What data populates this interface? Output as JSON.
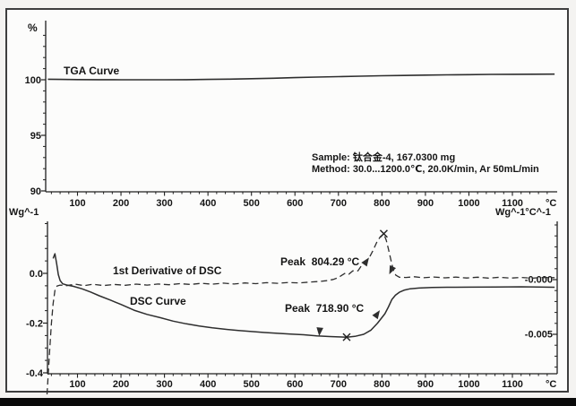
{
  "colors": {
    "page_bg": "#f4f3f1",
    "panel_bg": "#fcfcfb",
    "frame_border": "#3e3e3e",
    "axis": "#1f1f1f",
    "curve": "#2e2e2e",
    "text": "#151515",
    "bottom_bar": "#0a0a0a"
  },
  "chart_data": [
    {
      "type": "line",
      "panel": "TGA",
      "xlabel": "°C",
      "ylabel": "%",
      "xlim": [
        27,
        1204
      ],
      "ylim": [
        90,
        105.3
      ],
      "x_ticks": [
        100,
        200,
        300,
        400,
        500,
        600,
        700,
        800,
        900,
        1000,
        1100
      ],
      "x_minor_step": 20,
      "y_ticks": [
        100,
        95,
        90
      ],
      "y_tick_labels": [
        "100",
        "95",
        "90"
      ],
      "y_minor_step": 1,
      "grid": false,
      "annotations": [
        {
          "type": "text",
          "text": "Sample: 钛合金-4, 167.0300 mg"
        },
        {
          "type": "text",
          "text": "Method: 30.0...1200.0℃, 20.0K/min, Ar 50mL/min"
        }
      ],
      "series": [
        {
          "name": "TGA Curve",
          "line": "solid",
          "units": {
            "x": "°C",
            "y": "%"
          },
          "points": [
            [
              32,
              100.05
            ],
            [
              60,
              100.03
            ],
            [
              100,
              100.02
            ],
            [
              150,
              100.01
            ],
            [
              200,
              100
            ],
            [
              250,
              100
            ],
            [
              300,
              100
            ],
            [
              350,
              100.01
            ],
            [
              400,
              100.03
            ],
            [
              450,
              100.06
            ],
            [
              500,
              100.1
            ],
            [
              550,
              100.14
            ],
            [
              600,
              100.19
            ],
            [
              650,
              100.24
            ],
            [
              700,
              100.28
            ],
            [
              750,
              100.32
            ],
            [
              800,
              100.36
            ],
            [
              850,
              100.39
            ],
            [
              900,
              100.42
            ],
            [
              950,
              100.44
            ],
            [
              1000,
              100.46
            ],
            [
              1050,
              100.48
            ],
            [
              1100,
              100.49
            ],
            [
              1150,
              100.5
            ],
            [
              1197,
              100.51
            ]
          ]
        }
      ]
    },
    {
      "type": "line",
      "panel": "DSC",
      "xlabel": "°C",
      "xlim": [
        27,
        1204
      ],
      "x_ticks": [
        100,
        200,
        300,
        400,
        500,
        600,
        700,
        800,
        900,
        1000,
        1100
      ],
      "x_minor_step": 20,
      "grid": false,
      "y_left": {
        "label": "Wg^-1",
        "ticks": [
          0,
          -0.2,
          -0.4
        ],
        "tick_labels": [
          "0.0",
          "-0.2",
          "-0.4"
        ],
        "minor_step": 0.05,
        "lim": [
          -0.405,
          0.21
        ]
      },
      "y_right": {
        "label": "Wg^-1°C^-1",
        "ticks": [
          0,
          -0.005
        ],
        "tick_labels": [
          "-0.000",
          "-0.005"
        ],
        "minor_step": 0.001,
        "lim": [
          -0.0086,
          0.0053
        ]
      },
      "peaks": [
        {
          "label": "Peak  718.90 °C",
          "series": "DSC Curve",
          "temperature_c": 718.9,
          "value": -0.2565,
          "axis": "left"
        },
        {
          "label": "Peak  804.29 °C",
          "series": "1st Derivative of DSC",
          "temperature_c": 804.29,
          "value": 0.0042,
          "axis": "right"
        }
      ],
      "markers": [
        {
          "type": "x",
          "T": 804.29,
          "value": 0.0042,
          "axis": "right"
        },
        {
          "type": "x",
          "T": 718.9,
          "value": -0.2565,
          "axis": "left"
        },
        {
          "type": "arrow",
          "T": 762,
          "value": 0.00155,
          "axis": "right",
          "angle": -55
        },
        {
          "type": "arrow",
          "T": 823,
          "value": 0.001,
          "axis": "right",
          "angle": 115
        },
        {
          "type": "arrow",
          "T": 657,
          "value": -0.227,
          "axis": "left",
          "angle": 95
        },
        {
          "type": "arrow",
          "T": 787,
          "value": -0.169,
          "axis": "left",
          "angle": -55
        }
      ],
      "series": [
        {
          "name": "DSC Curve",
          "axis": "left",
          "line": "solid",
          "units": {
            "x": "°C",
            "y": "Wg^-1"
          },
          "points": [
            [
              44,
              0.06
            ],
            [
              48,
              0.079
            ],
            [
              52,
              0.04
            ],
            [
              56,
              -0.005
            ],
            [
              60,
              -0.029
            ],
            [
              66,
              -0.042
            ],
            [
              75,
              -0.047
            ],
            [
              90,
              -0.052
            ],
            [
              110,
              -0.062
            ],
            [
              130,
              -0.075
            ],
            [
              150,
              -0.09
            ],
            [
              175,
              -0.107
            ],
            [
              200,
              -0.125
            ],
            [
              230,
              -0.148
            ],
            [
              260,
              -0.165
            ],
            [
              290,
              -0.178
            ],
            [
              320,
              -0.192
            ],
            [
              350,
              -0.203
            ],
            [
              380,
              -0.212
            ],
            [
              410,
              -0.219
            ],
            [
              440,
              -0.225
            ],
            [
              470,
              -0.23
            ],
            [
              500,
              -0.234
            ],
            [
              530,
              -0.238
            ],
            [
              560,
              -0.241
            ],
            [
              590,
              -0.244
            ],
            [
              620,
              -0.247
            ],
            [
              650,
              -0.251
            ],
            [
              680,
              -0.254
            ],
            [
              700,
              -0.2555
            ],
            [
              718.9,
              -0.2565
            ],
            [
              738,
              -0.2535
            ],
            [
              758,
              -0.245
            ],
            [
              775,
              -0.228
            ],
            [
              790,
              -0.2
            ],
            [
              800,
              -0.178
            ],
            [
              807,
              -0.162
            ],
            [
              815,
              -0.135
            ],
            [
              823,
              -0.105
            ],
            [
              831,
              -0.088
            ],
            [
              840,
              -0.076
            ],
            [
              852,
              -0.067
            ],
            [
              865,
              -0.062
            ],
            [
              885,
              -0.059
            ],
            [
              915,
              -0.057
            ],
            [
              950,
              -0.056
            ],
            [
              1000,
              -0.0555
            ],
            [
              1060,
              -0.055
            ],
            [
              1120,
              -0.054
            ],
            [
              1197,
              -0.056
            ]
          ]
        },
        {
          "name": "1st Derivative of DSC",
          "axis": "right",
          "line": "dashed",
          "units": {
            "x": "°C",
            "y": "Wg^-1°C^-1"
          },
          "points": [
            [
              30,
              -0.0105
            ],
            [
              36,
              -0.0065
            ],
            [
              40,
              -0.004
            ],
            [
              44,
              -0.0022
            ],
            [
              48,
              -0.001
            ],
            [
              53,
              -0.00058
            ],
            [
              60,
              -0.0005
            ],
            [
              75,
              -0.00055
            ],
            [
              95,
              -0.00042
            ],
            [
              115,
              -0.00055
            ],
            [
              135,
              -0.00043
            ],
            [
              160,
              -0.00054
            ],
            [
              185,
              -0.00044
            ],
            [
              210,
              -0.00052
            ],
            [
              235,
              -0.00041
            ],
            [
              260,
              -0.0005
            ],
            [
              285,
              -0.0004
            ],
            [
              310,
              -0.00047
            ],
            [
              335,
              -0.00037
            ],
            [
              360,
              -0.00044
            ],
            [
              385,
              -0.00034
            ],
            [
              410,
              -0.00042
            ],
            [
              435,
              -0.00032
            ],
            [
              460,
              -0.0004
            ],
            [
              485,
              -0.0003
            ],
            [
              510,
              -0.00037
            ],
            [
              535,
              -0.00028
            ],
            [
              560,
              -0.00034
            ],
            [
              585,
              -0.00026
            ],
            [
              610,
              -0.0003
            ],
            [
              635,
              -0.00022
            ],
            [
              655,
              -0.00017
            ],
            [
              672,
              -0.0001
            ],
            [
              688,
              2e-05
            ],
            [
              700,
              0.0002
            ],
            [
              708,
              0.0004
            ],
            [
              716,
              0.0006
            ],
            [
              724,
              0.0005
            ],
            [
              733,
              0.0008
            ],
            [
              745,
              0.0008
            ],
            [
              755,
              0.0014
            ],
            [
              765,
              0.0017
            ],
            [
              772,
              0.0021
            ],
            [
              780,
              0.0027
            ],
            [
              788,
              0.0034
            ],
            [
              796,
              0.0039
            ],
            [
              804.29,
              0.0042
            ],
            [
              810,
              0.0036
            ],
            [
              815,
              0.0028
            ],
            [
              820,
              0.0019
            ],
            [
              826,
              0.0009
            ],
            [
              832,
              0.0004
            ],
            [
              840,
              0.00022
            ],
            [
              855,
              0.0002
            ],
            [
              875,
              0.00026
            ],
            [
              895,
              0.00017
            ],
            [
              920,
              0.00024
            ],
            [
              945,
              0.00016
            ],
            [
              970,
              0.00023
            ],
            [
              995,
              0.00015
            ],
            [
              1020,
              0.00022
            ],
            [
              1045,
              0.00014
            ],
            [
              1070,
              0.00021
            ],
            [
              1095,
              0.00014
            ],
            [
              1120,
              0.0002
            ],
            [
              1145,
              0.00013
            ],
            [
              1170,
              0.0002
            ],
            [
              1197,
              0.00018
            ]
          ]
        }
      ]
    }
  ]
}
